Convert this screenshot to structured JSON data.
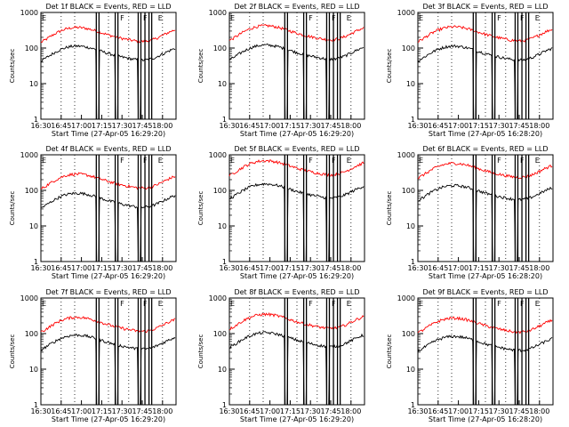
{
  "colors": {
    "events": "#000000",
    "lld": "#ff0000",
    "axes": "#000000"
  },
  "chart_data": {
    "type": "line",
    "x_tick_labels": [
      "16:30",
      "16:45",
      "17:00",
      "17:15",
      "17:30",
      "17:45",
      "18:00"
    ],
    "x_range_minutes": [
      0,
      100
    ],
    "y_log_scale": true,
    "y_range": [
      1,
      1000
    ],
    "y_tick_labels": [
      "1",
      "10",
      "100",
      "1000"
    ],
    "ylabel": "Counts/sec",
    "xlabel_prefix": "Start Time (27-Apr-05 ",
    "xlabel_suffix": ")",
    "start_times": [
      "16:29:20",
      "16:28:20"
    ],
    "flag_labels": [
      "F",
      "E"
    ],
    "panels": [
      {
        "title": "Det 1f BLACK = Events, RED = LLD",
        "start": 0,
        "events": 75,
        "lld": 250
      },
      {
        "title": "Det 2f BLACK = Events, RED = LLD",
        "start": 0,
        "events": 80,
        "lld": 280
      },
      {
        "title": "Det 3f BLACK = Events, RED = LLD",
        "start": 1,
        "events": 75,
        "lld": 260
      },
      {
        "title": "Det 4f BLACK = Events, RED = LLD",
        "start": 0,
        "events": 55,
        "lld": 190
      },
      {
        "title": "Det 5f BLACK = Events, RED = LLD",
        "start": 0,
        "events": 100,
        "lld": 450
      },
      {
        "title": "Det 6f BLACK = Events, RED = LLD",
        "start": 1,
        "events": 90,
        "lld": 380
      },
      {
        "title": "Det 7f BLACK = Events, RED = LLD",
        "start": 0,
        "events": 60,
        "lld": 190
      },
      {
        "title": "Det 8f BLACK = Events, RED = LLD",
        "start": 0,
        "events": 70,
        "lld": 230
      },
      {
        "title": "Det 9f BLACK = Events, RED = LLD",
        "start": 1,
        "events": 55,
        "lld": 180
      }
    ]
  }
}
